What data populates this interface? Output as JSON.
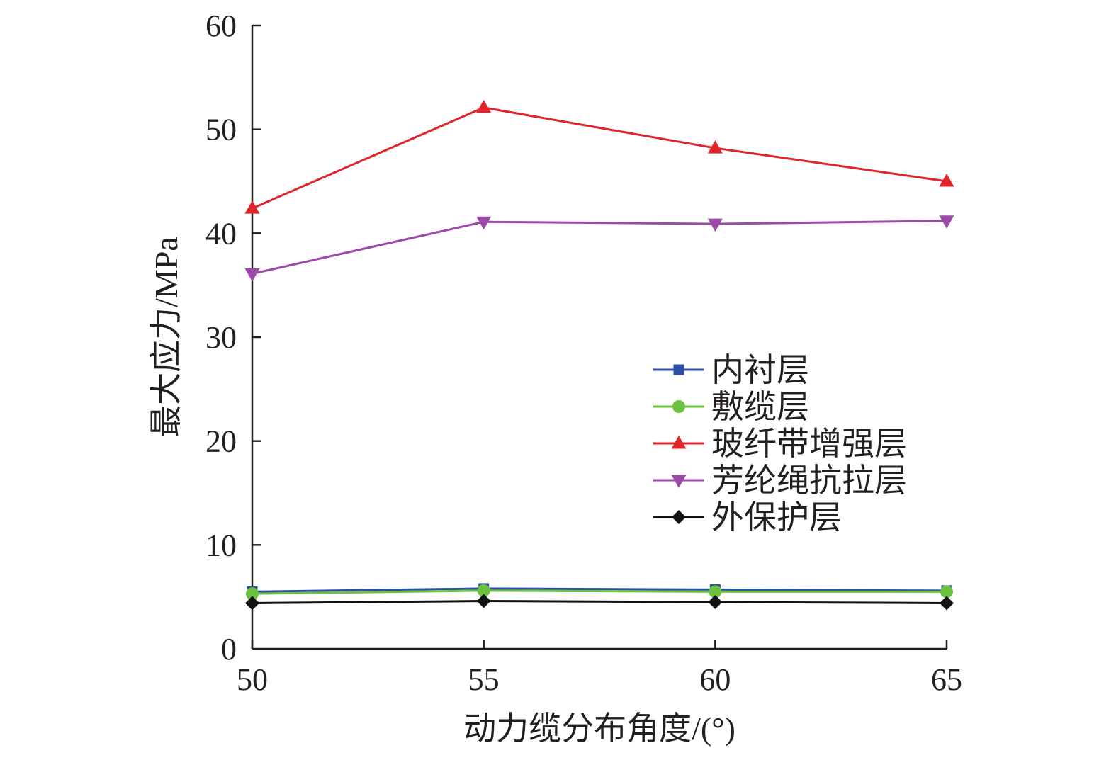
{
  "chart_data": {
    "type": "line",
    "title": "",
    "xlabel": "动力缆分布角度/(°)",
    "ylabel": "最大应力/MPa",
    "x": [
      50,
      55,
      60,
      65
    ],
    "xlim": [
      50,
      65
    ],
    "ylim": [
      0,
      60
    ],
    "xticks": [
      "50",
      "55",
      "60",
      "65"
    ],
    "yticks": [
      "0",
      "10",
      "20",
      "30",
      "40",
      "50",
      "60"
    ],
    "grid": false,
    "legend_position": "center-right",
    "series": [
      {
        "name": "内衬层",
        "values": [
          5.5,
          5.8,
          5.7,
          5.6
        ],
        "color": "#2e4fa3",
        "marker": "square"
      },
      {
        "name": "敷缆层",
        "values": [
          5.3,
          5.6,
          5.5,
          5.5
        ],
        "color": "#6cc13e",
        "marker": "circle"
      },
      {
        "name": "玻纤带增强层",
        "values": [
          42.4,
          52.1,
          48.2,
          45.0
        ],
        "color": "#e0262b",
        "marker": "triangle-up"
      },
      {
        "name": "芳纶绳抗拉层",
        "values": [
          36.1,
          41.1,
          40.9,
          41.2
        ],
        "color": "#9b4aa8",
        "marker": "triangle-down"
      },
      {
        "name": "外保护层",
        "values": [
          4.4,
          4.6,
          4.5,
          4.4
        ],
        "color": "#111111",
        "marker": "diamond"
      }
    ]
  }
}
